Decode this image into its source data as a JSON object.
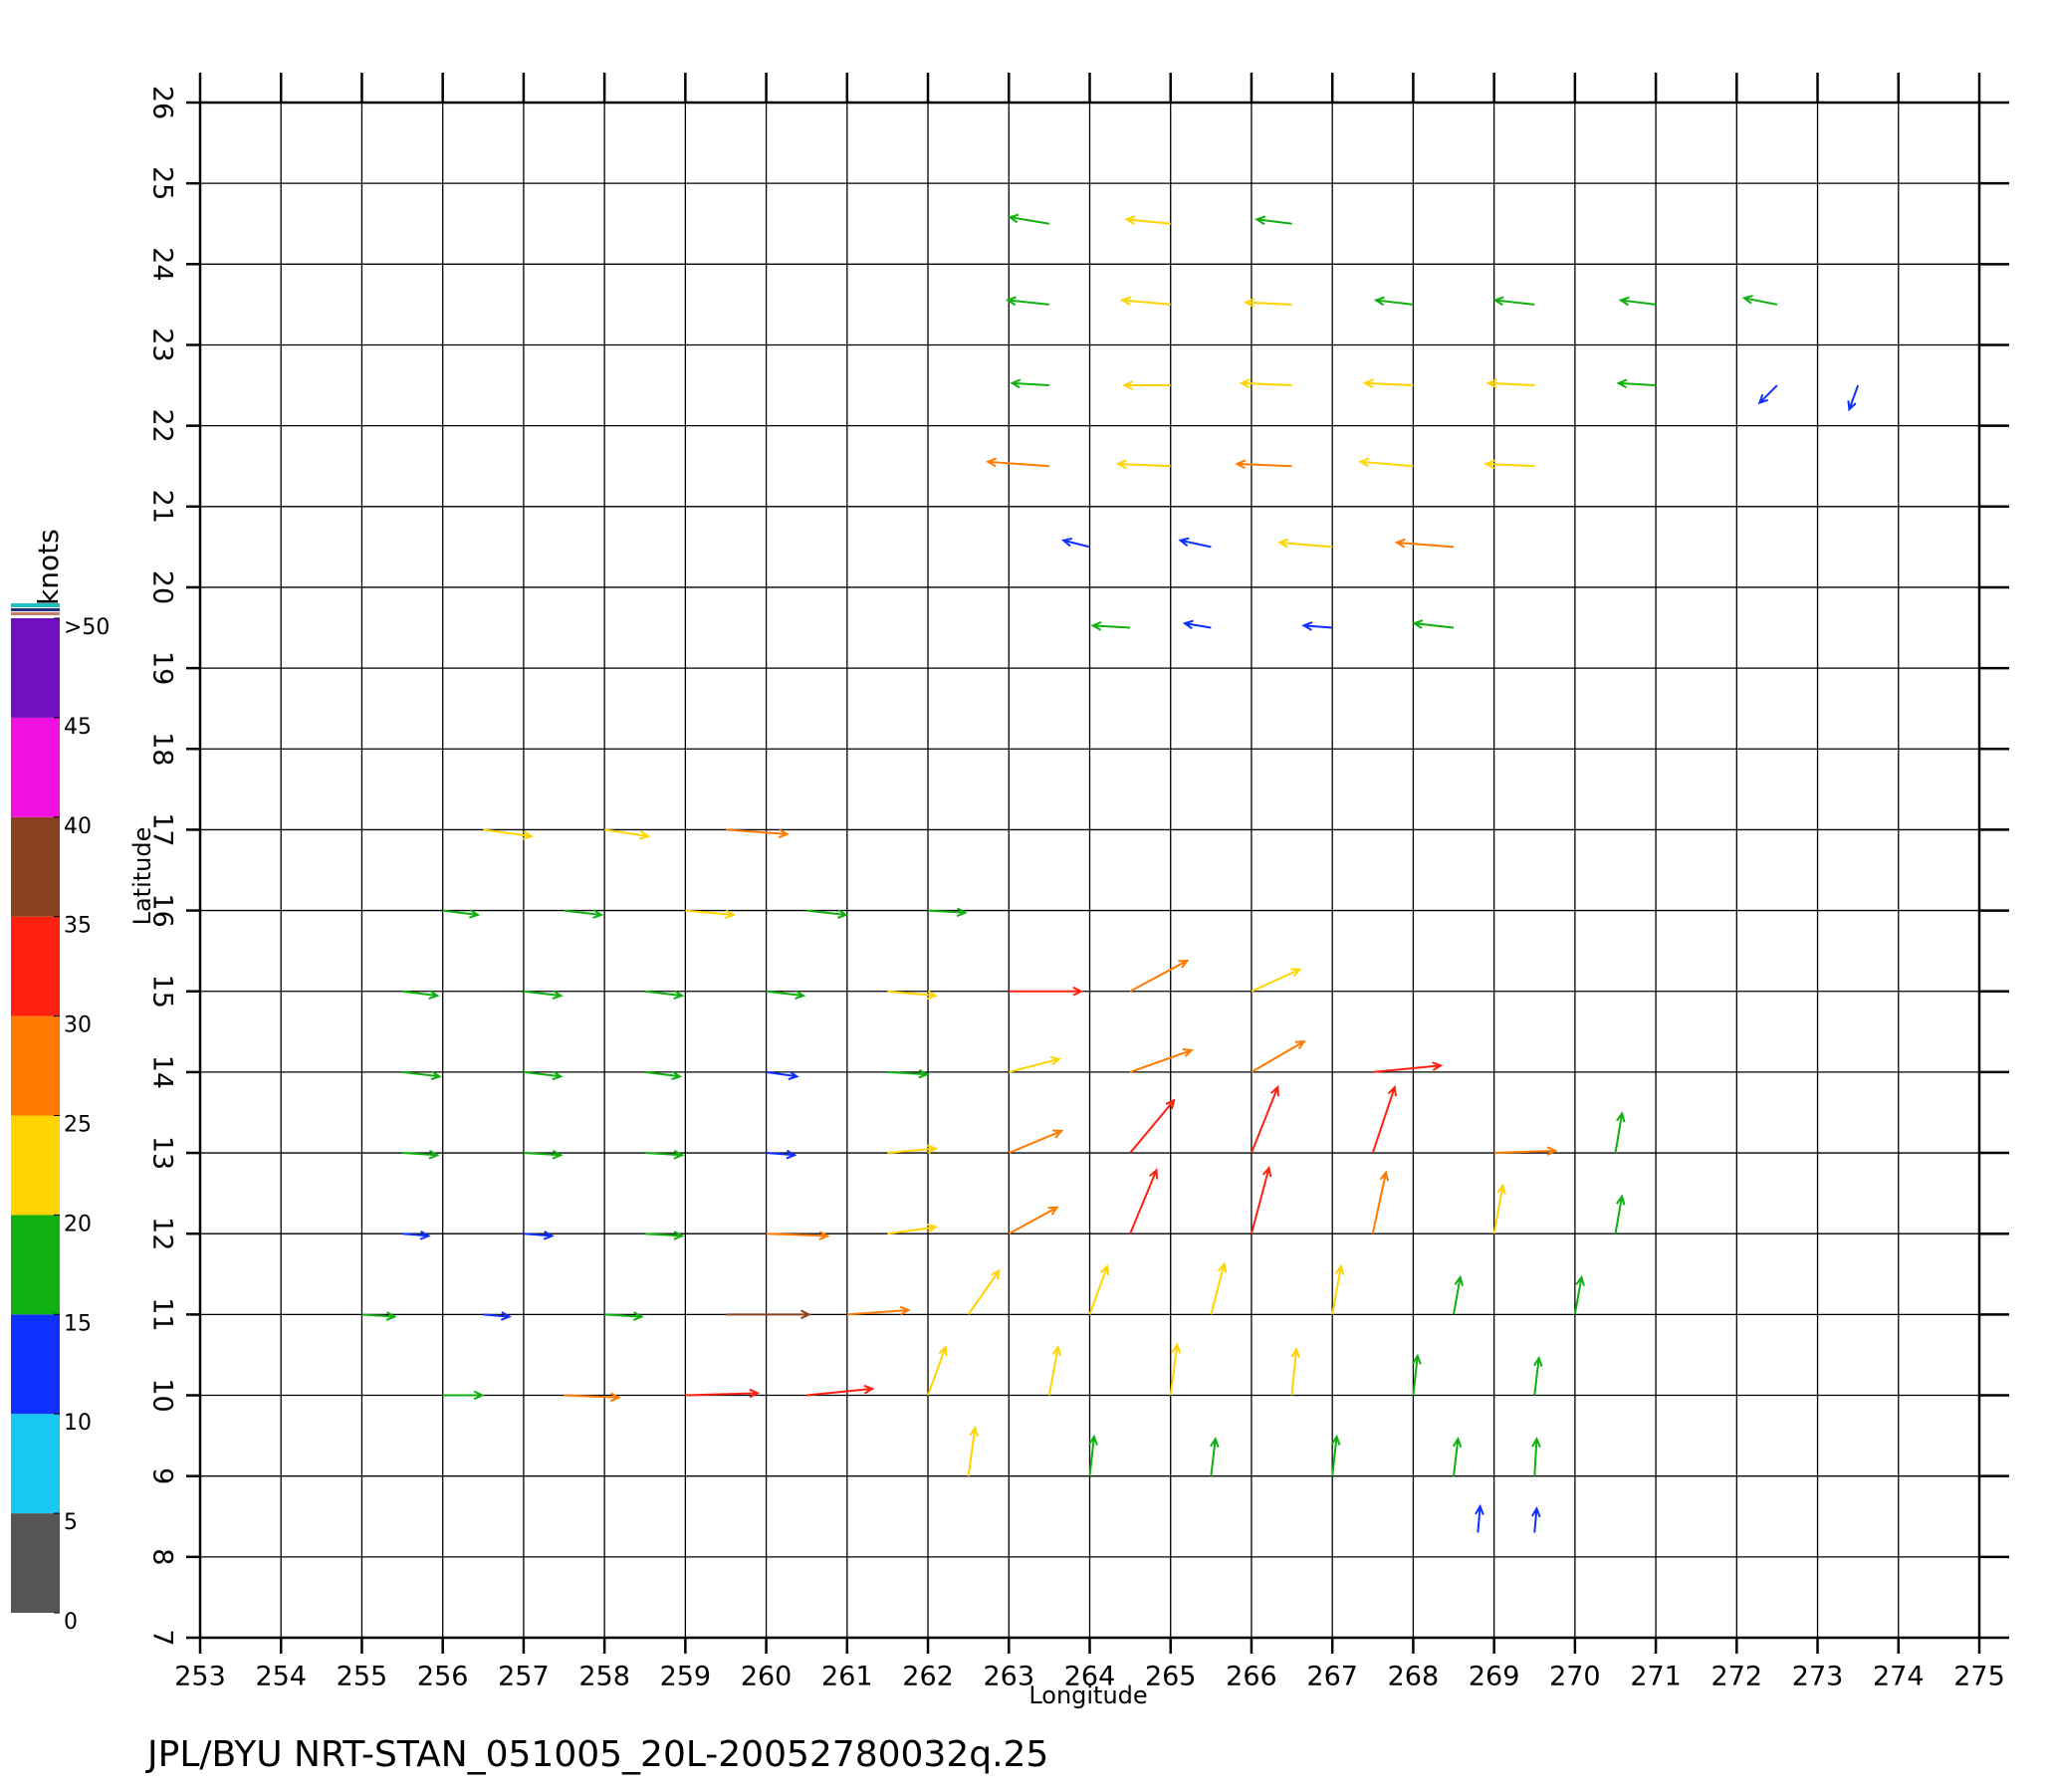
{
  "chart_data": {
    "type": "quiver",
    "x_label": "Longitude",
    "y_label": "Latitude",
    "footer": "JPL/BYU  NRT-STAN_051005_20L-20052780032q.25",
    "xlim": [
      253,
      275
    ],
    "xticks": [
      253,
      254,
      255,
      256,
      257,
      258,
      259,
      260,
      261,
      262,
      263,
      264,
      265,
      266,
      267,
      268,
      269,
      270,
      271,
      272,
      273,
      274,
      275
    ],
    "ylim": [
      7,
      26
    ],
    "yticks": [
      7,
      8,
      9,
      10,
      11,
      12,
      13,
      14,
      15,
      16,
      17,
      18,
      19,
      20,
      21,
      22,
      23,
      24,
      25,
      26
    ],
    "grid": true,
    "colorbar": {
      "title": "knots",
      "lim": [
        0,
        50
      ],
      "ticks": [
        0,
        5,
        10,
        15,
        20,
        25,
        30,
        35,
        40,
        45,
        {
          "value": 50,
          "label": ">50"
        }
      ],
      "colors": [
        "#555555",
        "#18c8f0",
        "#1030ff",
        "#10b010",
        "#ffd400",
        "#ff7a00",
        "#ff2010",
        "#8a4020",
        "#f010e0",
        "#7010c0"
      ]
    },
    "x": [
      263.5,
      265,
      266.5,
      263.5,
      265,
      266.5,
      268,
      269.5,
      271,
      272.5,
      263.5,
      265,
      266.5,
      268,
      269.5,
      271,
      272.5,
      273.5,
      263.5,
      265,
      266.5,
      268,
      269.5,
      264,
      265.5,
      267,
      268.5,
      264.5,
      265.5,
      267,
      268.5,
      256.5,
      258,
      259.5,
      256,
      257.5,
      259,
      260.5,
      262,
      255.5,
      257,
      258.5,
      260,
      261.5,
      263,
      264.5,
      266,
      255.5,
      257,
      258.5,
      260,
      261.5,
      263,
      264.5,
      266,
      267.5,
      255.5,
      257,
      258.5,
      260,
      261.5,
      263,
      264.5,
      266,
      267.5,
      269,
      270.5,
      255.5,
      257,
      258.5,
      260,
      261.5,
      263,
      264.5,
      266,
      267.5,
      269,
      270.5,
      255,
      256.5,
      258,
      259.5,
      261,
      262.5,
      264,
      265.5,
      267,
      268.5,
      270,
      256,
      257.5,
      259,
      260.5,
      262,
      263.5,
      265,
      266.5,
      268,
      269.5,
      262.5,
      264,
      265.5,
      267,
      268.5,
      269.5,
      268.8,
      269.5
    ],
    "y": [
      24.5,
      24.5,
      24.5,
      23.5,
      23.5,
      23.5,
      23.5,
      23.5,
      23.5,
      23.5,
      22.5,
      22.5,
      22.5,
      22.5,
      22.5,
      22.5,
      22.5,
      22.5,
      21.5,
      21.5,
      21.5,
      21.5,
      21.5,
      20.5,
      20.5,
      20.5,
      20.5,
      19.5,
      19.5,
      19.5,
      19.5,
      17,
      17,
      17,
      16,
      16,
      16,
      16,
      16,
      15,
      15,
      15,
      15,
      15,
      15,
      15,
      15,
      14,
      14,
      14,
      14,
      14,
      14,
      14,
      14,
      14,
      13,
      13,
      13,
      13,
      13,
      13,
      13,
      13,
      13,
      13,
      13,
      12,
      12,
      12,
      12,
      12,
      12,
      12,
      12,
      12,
      12,
      12,
      11,
      11,
      11,
      11,
      11,
      11,
      11,
      11,
      11,
      11,
      11,
      10,
      10,
      10,
      10,
      10,
      10,
      10,
      10,
      10,
      10,
      9,
      9,
      9,
      9,
      9,
      9,
      8.3,
      8.3
    ],
    "u": [
      -18,
      -20,
      -16,
      -19,
      -22,
      -21,
      -17,
      -18,
      -16,
      -15,
      -17,
      -21,
      -23,
      -22,
      -21,
      -17,
      -8,
      -4,
      -28,
      -24,
      -25,
      -24,
      -22,
      -12,
      -14,
      -24,
      -26,
      -17,
      -12,
      -13,
      -18,
      22,
      20,
      28,
      16,
      17,
      22,
      18,
      17,
      16,
      17,
      17,
      17,
      22,
      33,
      26,
      22,
      17,
      17,
      16,
      14,
      18,
      23,
      28,
      24,
      31,
      16,
      17,
      17,
      13,
      22,
      24,
      20,
      12,
      10,
      28,
      3,
      12,
      13,
      17,
      28,
      22,
      22,
      12,
      8,
      6,
      4,
      3,
      15,
      12,
      17,
      38,
      28,
      14,
      8,
      6,
      4,
      3,
      3,
      18,
      25,
      33,
      30,
      8,
      4,
      3,
      2,
      2,
      2,
      3,
      2,
      2,
      2,
      2,
      1,
      1,
      1
    ],
    "v": [
      3,
      2,
      2,
      2,
      2,
      1,
      2,
      2,
      2,
      3,
      1,
      0,
      1,
      1,
      1,
      1,
      -8,
      -11,
      2,
      1,
      1,
      2,
      1,
      3,
      3,
      2,
      2,
      1,
      2,
      1,
      2,
      -3,
      -3,
      -2,
      -2,
      -2,
      -2,
      -2,
      -1,
      -2,
      -2,
      -2,
      -2,
      -2,
      0,
      14,
      10,
      -2,
      -2,
      -2,
      -2,
      -1,
      6,
      10,
      14,
      3,
      -1,
      -1,
      -1,
      -1,
      2,
      10,
      24,
      30,
      30,
      1,
      18,
      -1,
      -1,
      -1,
      -1,
      3,
      12,
      29,
      30,
      28,
      22,
      17,
      -1,
      -1,
      -1,
      0,
      2,
      20,
      22,
      23,
      22,
      17,
      17,
      0,
      -1,
      1,
      3,
      22,
      22,
      23,
      21,
      18,
      17,
      22,
      18,
      17,
      18,
      17,
      17,
      12,
      11
    ]
  }
}
